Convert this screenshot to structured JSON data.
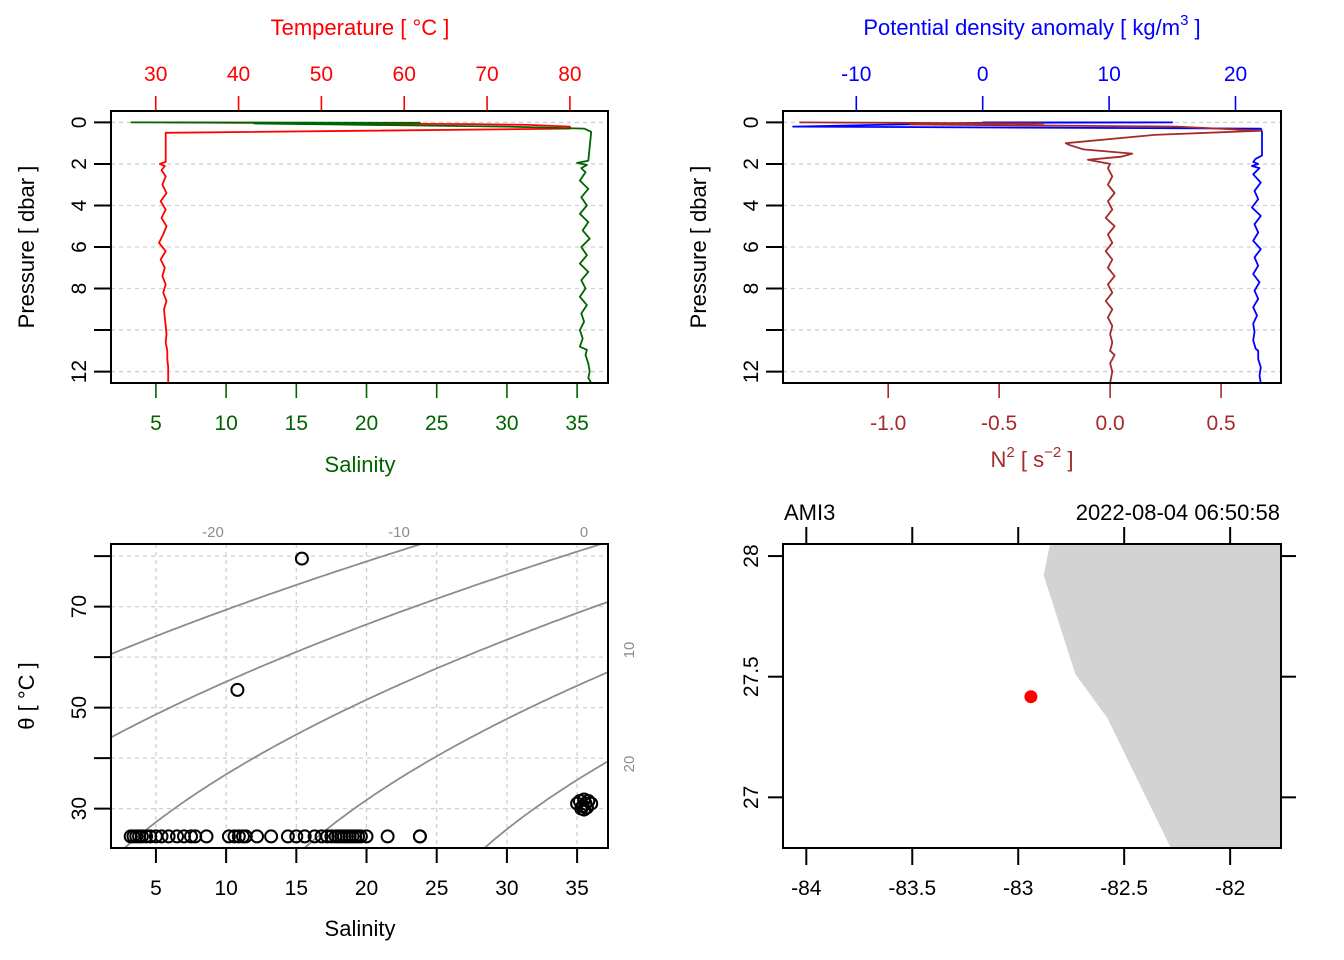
{
  "chart_data": [
    {
      "id": "profile-temp-sal",
      "type": "line",
      "title": "",
      "top_axis": {
        "label": "Temperature [ °C ]",
        "color": "#ff0000",
        "ticks": [
          30,
          40,
          50,
          60,
          70,
          80
        ],
        "tick_labels": [
          "30",
          "40",
          "50",
          "60",
          "70",
          "80"
        ],
        "range": [
          24.6,
          84.6
        ]
      },
      "bottom_axis": {
        "label": "Salinity",
        "color": "#006400",
        "ticks": [
          5,
          10,
          15,
          20,
          25,
          30,
          35
        ],
        "tick_labels": [
          "5",
          "10",
          "15",
          "20",
          "25",
          "30",
          "35"
        ],
        "range": [
          1.8,
          37.2
        ]
      },
      "left_axis": {
        "label": "Pressure [ dbar ]",
        "ticks": [
          0,
          2,
          4,
          6,
          8,
          10,
          12
        ],
        "tick_labels": [
          "0",
          "2",
          "4",
          "6",
          "8",
          "",
          "12"
        ],
        "range": [
          12.55,
          -0.55
        ],
        "reversed": true
      },
      "grid": "horizontal-dashed",
      "series": [
        {
          "name": "Temperature",
          "color": "#ff0000",
          "axis": "top",
          "pressure": [
            0.0,
            0.02,
            0.05,
            0.08,
            0.12,
            0.2,
            0.25,
            0.3,
            0.5,
            1.9,
            2.0,
            2.1,
            2.3,
            2.6,
            3.0,
            3.4,
            3.8,
            4.2,
            4.6,
            5.0,
            5.4,
            5.8,
            6.2,
            6.6,
            7.0,
            7.4,
            7.8,
            8.2,
            8.6,
            9.0,
            9.4,
            9.8,
            10.2,
            10.6,
            11.0,
            11.4,
            11.8,
            12.2,
            12.55
          ],
          "values": [
            31.0,
            40.0,
            55.0,
            68.0,
            75.0,
            80.0,
            80.0,
            80.0,
            31.2,
            31.2,
            30.5,
            31.1,
            30.7,
            31.2,
            30.8,
            31.3,
            30.6,
            31.2,
            30.7,
            31.3,
            30.9,
            30.4,
            31.2,
            30.6,
            31.1,
            30.8,
            31.2,
            30.9,
            31.3,
            31.0,
            31.1,
            31.2,
            31.3,
            31.2,
            31.4,
            31.4,
            31.5,
            31.5,
            31.5
          ]
        },
        {
          "name": "Salinity",
          "color": "#006400",
          "axis": "bottom",
          "pressure": [
            0.0,
            0.02,
            0.05,
            0.1,
            0.2,
            0.3,
            0.45,
            1.85,
            1.95,
            2.05,
            2.2,
            2.4,
            2.8,
            3.2,
            3.6,
            4.0,
            4.4,
            4.8,
            5.2,
            5.6,
            6.0,
            6.4,
            6.8,
            7.2,
            7.6,
            8.0,
            8.4,
            8.8,
            9.2,
            9.6,
            10.0,
            10.4,
            10.8,
            10.95,
            11.2,
            11.6,
            12.0,
            12.3,
            12.55
          ],
          "values": [
            3.2,
            23.8,
            12.0,
            18.0,
            30.0,
            35.5,
            36.0,
            35.8,
            35.0,
            35.7,
            35.3,
            35.6,
            35.2,
            35.8,
            35.3,
            35.7,
            35.2,
            35.8,
            35.4,
            35.9,
            35.3,
            35.7,
            35.2,
            35.8,
            35.3,
            35.6,
            35.2,
            35.7,
            35.3,
            35.5,
            35.2,
            35.4,
            35.2,
            35.7,
            35.6,
            35.8,
            35.9,
            35.8,
            36.0
          ]
        }
      ]
    },
    {
      "id": "profile-n2-sigma",
      "type": "line",
      "top_axis": {
        "label": "Potential density anomaly [ kg/m³ ]",
        "label_main": "Potential density anomaly [ kg/m",
        "label_sup": "3",
        "label_end": " ]",
        "color": "#0000ff",
        "ticks": [
          -10,
          0,
          10,
          20
        ],
        "tick_labels": [
          "-10",
          "0",
          "10",
          "20"
        ],
        "range": [
          -15.8,
          23.6
        ]
      },
      "bottom_axis": {
        "label": "N² [ s⁻² ]",
        "label_main": "N",
        "label_sup": "2",
        "label_mid": " [ s",
        "label_sup2": "−2",
        "label_end": " ]",
        "color": "#a52a2a",
        "ticks": [
          -1.0,
          -0.5,
          0.0,
          0.5
        ],
        "tick_labels": [
          "-1.0",
          "-0.5",
          "0.0",
          "0.5"
        ],
        "range": [
          -1.474,
          0.77
        ]
      },
      "left_axis": {
        "label": "Pressure [ dbar ]",
        "ticks": [
          0,
          2,
          4,
          6,
          8,
          10,
          12
        ],
        "tick_labels": [
          "0",
          "2",
          "4",
          "6",
          "8",
          "",
          "12"
        ],
        "range": [
          12.55,
          -0.55
        ],
        "reversed": true
      },
      "grid": "horizontal-dashed",
      "series": [
        {
          "name": "Potential density anomaly",
          "color": "#0000ff",
          "axis": "top",
          "pressure": [
            0.0,
            0.0,
            0.02,
            0.2,
            0.3,
            0.45,
            1.6,
            1.75,
            1.9,
            2.0,
            2.1,
            2.2,
            2.5,
            2.9,
            3.3,
            3.7,
            4.1,
            4.5,
            4.9,
            5.3,
            5.7,
            6.1,
            6.5,
            6.9,
            7.3,
            7.7,
            8.1,
            8.5,
            8.9,
            9.3,
            9.7,
            10.1,
            10.5,
            10.9,
            11.0,
            11.4,
            11.8,
            12.2,
            12.55
          ],
          "values": [
            0.0,
            15.0,
            0.0,
            -15.0,
            22.0,
            22.1,
            22.1,
            21.6,
            21.4,
            21.8,
            21.3,
            21.9,
            21.4,
            22.0,
            21.5,
            21.8,
            21.3,
            22.0,
            21.5,
            21.8,
            21.4,
            22.0,
            21.5,
            21.8,
            21.4,
            21.9,
            21.5,
            21.8,
            21.4,
            21.7,
            21.4,
            21.5,
            21.4,
            21.6,
            21.8,
            21.8,
            22.0,
            21.9,
            22.0
          ]
        },
        {
          "name": "N2",
          "color": "#a52a2a",
          "axis": "bottom",
          "pressure": [
            0.0,
            0.05,
            0.1,
            0.2,
            0.4,
            0.6,
            1.0,
            1.1,
            1.3,
            1.5,
            1.65,
            1.8,
            2.0,
            2.2,
            2.6,
            3.0,
            3.4,
            3.8,
            4.2,
            4.6,
            5.0,
            5.4,
            5.8,
            6.2,
            6.6,
            7.0,
            7.4,
            7.8,
            8.2,
            8.6,
            9.0,
            9.4,
            9.8,
            10.2,
            10.6,
            11.0,
            11.2,
            11.6,
            12.0,
            12.55
          ],
          "values": [
            -1.4,
            -0.3,
            -0.9,
            0.3,
            0.68,
            0.2,
            -0.2,
            -0.18,
            -0.12,
            0.1,
            0.05,
            -0.1,
            0.0,
            -0.01,
            0.01,
            -0.01,
            0.02,
            -0.01,
            0.01,
            -0.02,
            0.02,
            -0.01,
            0.01,
            -0.02,
            0.01,
            -0.01,
            0.02,
            -0.01,
            0.01,
            -0.02,
            0.01,
            -0.01,
            0.01,
            0.0,
            0.01,
            0.0,
            0.02,
            0.0,
            0.01,
            0.0
          ]
        }
      ]
    },
    {
      "id": "ts-diagram",
      "type": "scatter",
      "xlabel": "Salinity",
      "ylabel": "θ [ °C ]",
      "xlim": [
        1.8,
        37.2
      ],
      "ylim": [
        22.2,
        82.4
      ],
      "xticks": [
        5,
        10,
        15,
        20,
        25,
        30,
        35
      ],
      "xtick_labels": [
        "5",
        "10",
        "15",
        "20",
        "25",
        "30",
        "35"
      ],
      "yticks": [
        30,
        40,
        50,
        60,
        70,
        80
      ],
      "ytick_labels": [
        "30",
        "",
        "50",
        "",
        "70",
        ""
      ],
      "grid": "dashed",
      "marker": "open-circle",
      "isopycnals": {
        "color": "#8c8c8c",
        "levels": [
          -20,
          -10,
          0,
          10,
          20
        ],
        "top_labels": [
          "-20",
          "-10",
          "0"
        ],
        "right_labels": [
          "10",
          "20"
        ]
      },
      "points": {
        "salinity": [
          3.2,
          3.4,
          3.6,
          3.8,
          4.0,
          4.3,
          4.6,
          5.0,
          5.4,
          5.9,
          6.5,
          7.0,
          7.5,
          7.8,
          8.6,
          10.2,
          10.6,
          10.9,
          11.2,
          11.4,
          12.2,
          13.2,
          14.4,
          15.0,
          15.6,
          16.3,
          16.8,
          17.2,
          17.5,
          17.8,
          18.0,
          18.2,
          18.4,
          18.6,
          18.8,
          19.0,
          19.2,
          19.4,
          19.6,
          20.0,
          21.5,
          23.8,
          23.8,
          15.4,
          10.8,
          35.0,
          35.2,
          35.4,
          35.6,
          35.8,
          36.0,
          35.3,
          35.5,
          35.7,
          35.5
        ],
        "theta": [
          24.5,
          24.5,
          24.5,
          24.5,
          24.5,
          24.5,
          24.5,
          24.5,
          24.5,
          24.5,
          24.5,
          24.5,
          24.5,
          24.5,
          24.5,
          24.5,
          24.5,
          24.5,
          24.5,
          24.5,
          24.5,
          24.5,
          24.5,
          24.5,
          24.5,
          24.5,
          24.5,
          24.5,
          24.5,
          24.5,
          24.5,
          24.5,
          24.5,
          24.5,
          24.5,
          24.5,
          24.5,
          24.5,
          24.5,
          24.5,
          24.5,
          24.5,
          24.5,
          79.5,
          53.5,
          31.0,
          31.5,
          30.5,
          31.0,
          31.5,
          31.0,
          30.0,
          29.8,
          30.2,
          31.8
        ]
      }
    },
    {
      "id": "station-map",
      "type": "scatter",
      "title_left": "AMI3",
      "title_right": "2022-08-04 06:50:58",
      "xlim": [
        -84.11,
        -81.76
      ],
      "ylim": [
        26.79,
        28.05
      ],
      "xticks": [
        -84,
        -83.5,
        -83,
        -82.5,
        -82
      ],
      "xtick_labels": [
        "-84",
        "-83.5",
        "-83",
        "-82.5",
        "-82"
      ],
      "yticks": [
        27,
        27.5,
        28
      ],
      "ytick_labels": [
        "27",
        "27.5",
        "28"
      ],
      "land_color": "#d3d3d3",
      "coastline": {
        "lon": [
          -82.85,
          -82.88,
          -82.73,
          -82.58,
          -82.28,
          -81.76,
          -81.76
        ],
        "lat": [
          28.05,
          27.92,
          27.51,
          27.33,
          26.79,
          26.79,
          28.05
        ]
      },
      "station": {
        "lon": -82.94,
        "lat": 27.417,
        "color": "#ff0000"
      }
    }
  ]
}
